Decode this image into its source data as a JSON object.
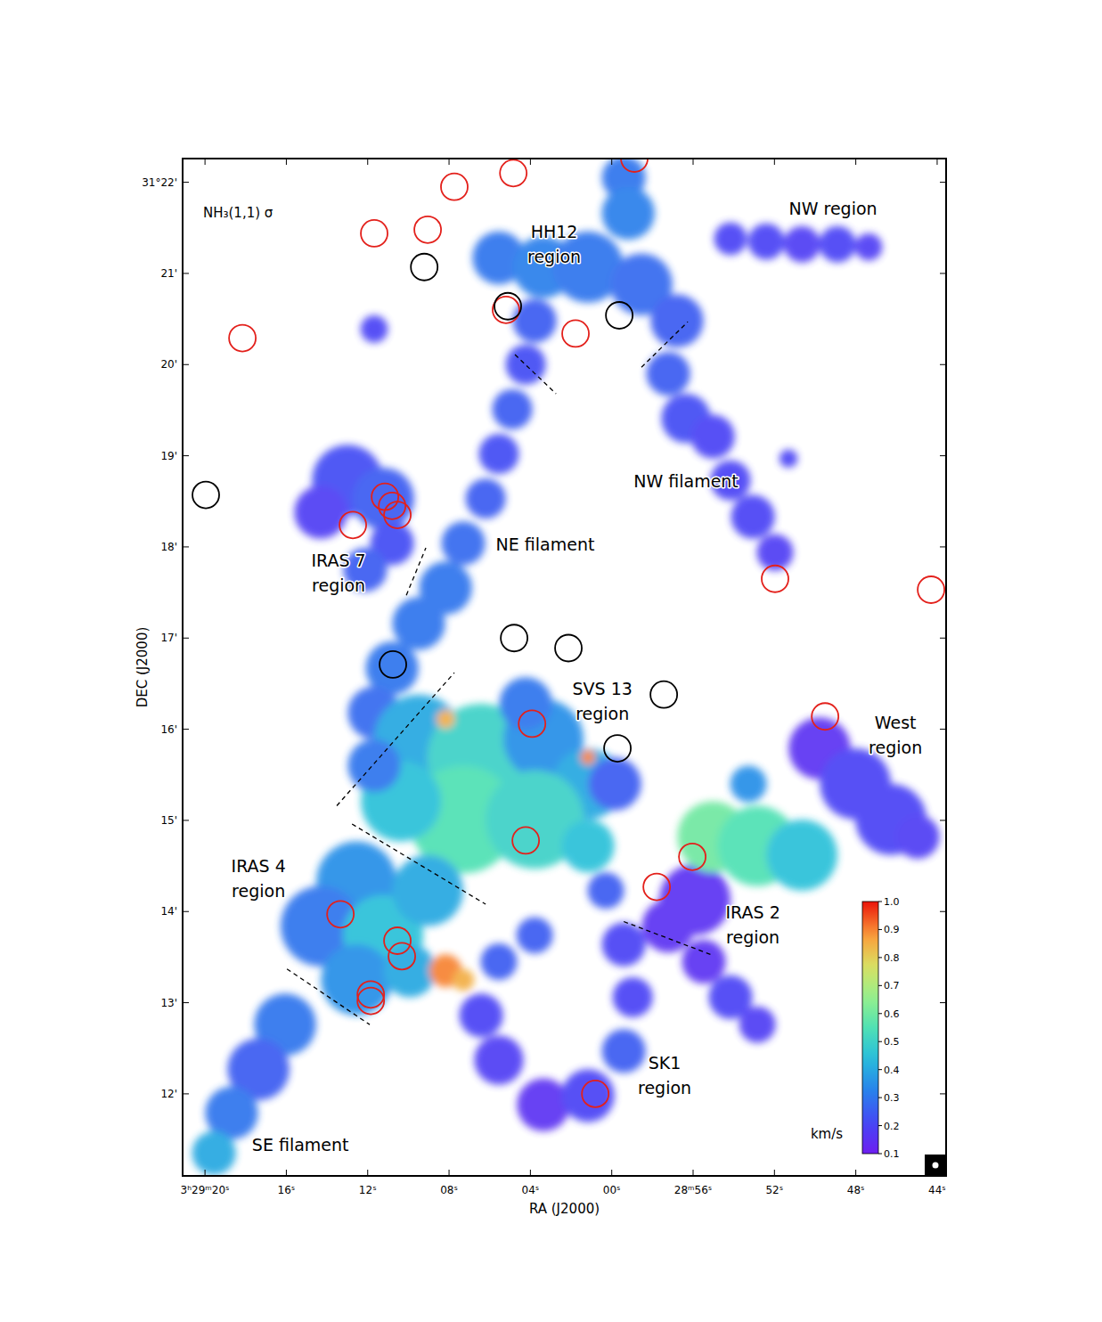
{
  "chart_data": {
    "type": "map",
    "title": "NH₃(1,1) σ",
    "x_label": "RA (J2000)",
    "y_label": "DEC (J2000)",
    "xlim": [
      81.1,
      43.56
    ],
    "ylim": [
      22.26,
      11.1
    ],
    "xticks": [
      {
        "value": 80,
        "label": "3ʰ29ᵐ20ˢ"
      },
      {
        "value": 76,
        "label": "16ˢ"
      },
      {
        "value": 72,
        "label": "12ˢ"
      },
      {
        "value": 68,
        "label": "08ˢ"
      },
      {
        "value": 64,
        "label": "04ˢ"
      },
      {
        "value": 60,
        "label": "00ˢ"
      },
      {
        "value": 56,
        "label": "28ᵐ56ˢ"
      },
      {
        "value": 52,
        "label": "52ˢ"
      },
      {
        "value": 48,
        "label": "48ˢ"
      },
      {
        "value": 44,
        "label": "44ˢ"
      }
    ],
    "yticks": [
      {
        "value": 22,
        "label": "31°22'"
      },
      {
        "value": 21,
        "label": "21'"
      },
      {
        "value": 20,
        "label": "20'"
      },
      {
        "value": 19,
        "label": "19'"
      },
      {
        "value": 18,
        "label": "18'"
      },
      {
        "value": 17,
        "label": "17'"
      },
      {
        "value": 16,
        "label": "16'"
      },
      {
        "value": 15,
        "label": "15'"
      },
      {
        "value": 14,
        "label": "14'"
      },
      {
        "value": 13,
        "label": "13'"
      },
      {
        "value": 12,
        "label": "12'"
      }
    ],
    "emission": {
      "x": [
        54.16,
        52.4,
        50.65,
        48.9,
        47.37,
        59.41,
        59.19,
        65.55,
        63.36,
        61.17,
        58.54,
        56.79,
        63.79,
        64.23,
        64.89,
        65.55,
        66.2,
        67.3,
        68.17,
        69.49,
        70.8,
        71.68,
        57.22,
        56.35,
        55.03,
        54.16,
        53.06,
        51.97,
        51.31,
        72.99,
        71.24,
        74.31,
        70.8,
        72.12,
        71.68,
        69.49,
        66.42,
        63.36,
        61.17,
        67.3,
        63.79,
        70.36,
        71.68,
        61.17,
        64.23,
        59.85,
        68.17,
        61.17,
        72.55,
        74.31,
        71.24,
        69.05,
        72.55,
        69.93,
        68.17,
        67.3,
        76.06,
        77.37,
        78.69,
        79.56,
        66.42,
        65.55,
        63.36,
        61.17,
        59.41,
        58.97,
        59.41,
        60.29,
        63.79,
        65.55,
        55.91,
        55.03,
        52.84,
        50.65,
        57.22,
        55.47,
        54.16,
        52.84,
        53.28,
        49.78,
        48.02,
        46.27,
        44.96
      ],
      "y": [
        21.38,
        21.35,
        21.32,
        21.32,
        21.29,
        22.05,
        21.66,
        21.17,
        21.07,
        21.07,
        20.88,
        20.48,
        20.48,
        20.0,
        19.51,
        19.02,
        18.53,
        18.04,
        17.55,
        17.16,
        16.67,
        16.18,
        19.9,
        19.41,
        19.21,
        18.73,
        18.33,
        17.94,
        18.97,
        18.73,
        18.53,
        18.38,
        18.04,
        17.75,
        20.39,
        15.89,
        15.69,
        15.89,
        15.4,
        15.01,
        15.01,
        15.21,
        15.6,
        14.72,
        16.28,
        15.4,
        16.11,
        15.69,
        14.33,
        13.84,
        13.74,
        14.23,
        13.25,
        13.35,
        13.35,
        13.25,
        12.76,
        12.27,
        11.79,
        11.35,
        12.86,
        12.37,
        11.88,
        11.98,
        12.47,
        13.06,
        13.64,
        14.23,
        13.74,
        13.45,
        14.13,
        14.82,
        14.72,
        14.62,
        13.84,
        13.45,
        13.06,
        12.76,
        15.4,
        15.79,
        15.4,
        15.01,
        14.82
      ],
      "r": [
        0.18,
        0.2,
        0.2,
        0.2,
        0.15,
        0.24,
        0.29,
        0.29,
        0.34,
        0.39,
        0.34,
        0.29,
        0.24,
        0.22,
        0.22,
        0.22,
        0.22,
        0.24,
        0.29,
        0.29,
        0.29,
        0.29,
        0.24,
        0.27,
        0.24,
        0.22,
        0.24,
        0.2,
        0.1,
        0.39,
        0.34,
        0.29,
        0.24,
        0.24,
        0.15,
        0.49,
        0.59,
        0.44,
        0.39,
        0.59,
        0.54,
        0.44,
        0.29,
        0.29,
        0.29,
        0.29,
        0.1,
        0.08,
        0.44,
        0.44,
        0.44,
        0.39,
        0.39,
        0.29,
        0.18,
        0.12,
        0.34,
        0.34,
        0.29,
        0.24,
        0.24,
        0.27,
        0.29,
        0.29,
        0.24,
        0.22,
        0.24,
        0.2,
        0.2,
        0.2,
        0.39,
        0.39,
        0.44,
        0.39,
        0.29,
        0.24,
        0.24,
        0.2,
        0.2,
        0.34,
        0.39,
        0.39,
        0.24
      ],
      "values": [
        0.2,
        0.2,
        0.18,
        0.2,
        0.18,
        0.3,
        0.32,
        0.3,
        0.32,
        0.3,
        0.28,
        0.25,
        0.25,
        0.22,
        0.25,
        0.22,
        0.25,
        0.28,
        0.3,
        0.3,
        0.3,
        0.28,
        0.25,
        0.22,
        0.2,
        0.2,
        0.2,
        0.18,
        0.2,
        0.22,
        0.25,
        0.18,
        0.22,
        0.25,
        0.2,
        0.4,
        0.5,
        0.35,
        0.4,
        0.55,
        0.5,
        0.45,
        0.3,
        0.45,
        0.3,
        0.25,
        0.85,
        0.9,
        0.35,
        0.3,
        0.45,
        0.4,
        0.35,
        0.4,
        0.9,
        0.85,
        0.3,
        0.25,
        0.3,
        0.4,
        0.2,
        0.18,
        0.15,
        0.2,
        0.25,
        0.2,
        0.2,
        0.25,
        0.25,
        0.25,
        0.15,
        0.6,
        0.55,
        0.45,
        0.15,
        0.15,
        0.2,
        0.18,
        0.35,
        0.15,
        0.2,
        0.2,
        0.18
      ]
    },
    "series": [
      {
        "color": "#e3201b",
        "marker": "circle",
        "x": [
          58.89,
          64.84,
          67.74,
          71.68,
          69.05,
          78.16,
          65.2,
          61.78,
          71.15,
          70.8,
          70.54,
          72.73,
          51.97,
          44.3,
          63.92,
          49.51,
          64.23,
          56.04,
          57.79,
          73.34,
          70.54,
          70.32,
          71.85,
          71.85,
          60.81
        ],
        "values": [
          22.26,
          22.1,
          21.95,
          21.44,
          21.48,
          20.29,
          20.6,
          20.34,
          18.55,
          18.45,
          18.35,
          18.24,
          17.65,
          17.53,
          16.06,
          16.14,
          14.78,
          14.6,
          14.27,
          13.97,
          13.68,
          13.51,
          13.09,
          13.02,
          12.0
        ]
      },
      {
        "color": "#000000",
        "marker": "circle",
        "x": [
          69.22,
          65.11,
          59.63,
          79.96,
          70.76,
          64.8,
          62.13,
          57.44,
          59.72
        ],
        "values": [
          21.07,
          20.64,
          20.54,
          18.57,
          16.71,
          17.0,
          16.89,
          16.38,
          15.79
        ]
      }
    ],
    "dashed_lines": [
      {
        "x": [
          64.76,
          62.74
        ],
        "y": [
          20.11,
          19.68
        ]
      },
      {
        "x": [
          58.54,
          56.26
        ],
        "y": [
          19.97,
          20.47
        ]
      },
      {
        "x": [
          70.1,
          69.14
        ],
        "y": [
          17.47,
          17.99
        ]
      },
      {
        "x": [
          73.52,
          67.74
        ],
        "y": [
          15.16,
          16.62
        ]
      },
      {
        "x": [
          72.77,
          66.2
        ],
        "y": [
          14.96,
          14.08
        ]
      },
      {
        "x": [
          75.97,
          71.9
        ],
        "y": [
          13.37,
          12.76
        ]
      },
      {
        "x": [
          59.41,
          55.03
        ],
        "y": [
          13.89,
          13.52
        ]
      }
    ],
    "annotations": [
      {
        "text": [
          "NW region"
        ],
        "x": 49.12,
        "y": 21.71
      },
      {
        "text": [
          "HH12",
          "region"
        ],
        "x": 62.83,
        "y": 21.32
      },
      {
        "text": [
          "NW filament"
        ],
        "x": 56.35,
        "y": 18.72
      },
      {
        "text": [
          "NE filament"
        ],
        "x": 63.27,
        "y": 18.03
      },
      {
        "text": [
          "IRAS 7",
          "region"
        ],
        "x": 73.43,
        "y": 17.72
      },
      {
        "text": [
          "SVS 13",
          "region"
        ],
        "x": 60.46,
        "y": 16.31
      },
      {
        "text": [
          "West",
          "region"
        ],
        "x": 46.05,
        "y": 15.94
      },
      {
        "text": [
          "IRAS 4",
          "region"
        ],
        "x": 77.37,
        "y": 14.36
      },
      {
        "text": [
          "IRAS 2",
          "region"
        ],
        "x": 53.06,
        "y": 13.86
      },
      {
        "text": [
          "SK1",
          "region"
        ],
        "x": 57.4,
        "y": 12.2
      },
      {
        "text": [
          "SE filament"
        ],
        "x": 75.31,
        "y": 11.44
      }
    ],
    "colorbar": {
      "range": [
        0.1,
        1.0
      ],
      "ticks": [
        0.1,
        0.2,
        0.3,
        0.4,
        0.5,
        0.6,
        0.7,
        0.8,
        0.9,
        {
          "value": 1,
          "label": "1.0"
        }
      ],
      "label": "km/s"
    }
  }
}
